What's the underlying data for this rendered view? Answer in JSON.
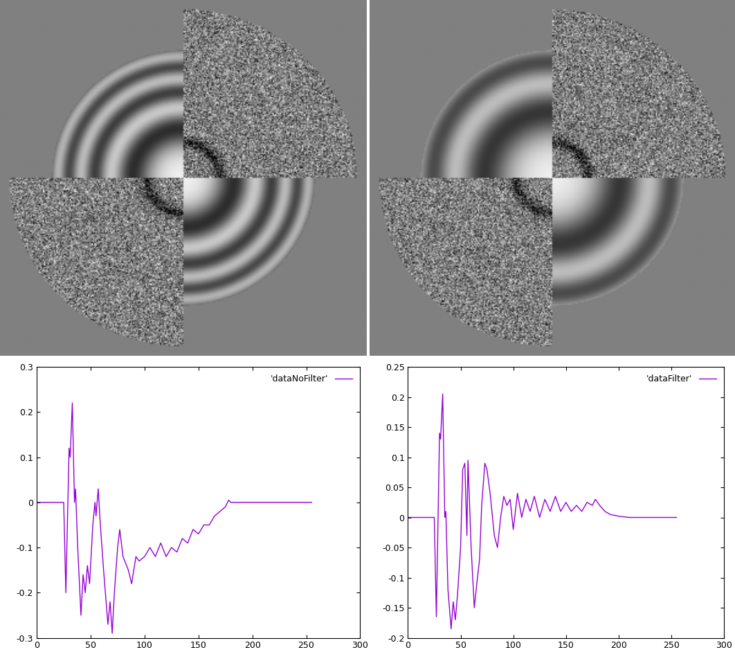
{
  "chart_data": [
    {
      "type": "line",
      "x": [
        0,
        25,
        27,
        30,
        31,
        33,
        35,
        36,
        38,
        41,
        43,
        45,
        47,
        49,
        52,
        54,
        55,
        57,
        59,
        62,
        66,
        68,
        70,
        72,
        75,
        77,
        80,
        85,
        88,
        92,
        95,
        100,
        105,
        110,
        115,
        120,
        125,
        130,
        135,
        140,
        145,
        150,
        155,
        160,
        165,
        170,
        175,
        178,
        180,
        255
      ],
      "series": [
        {
          "name": "'dataNoFilter'",
          "color": "#9400d3",
          "values": [
            0,
            0,
            -0.2,
            0.12,
            0.1,
            0.22,
            0,
            0.03,
            -0.1,
            -0.25,
            -0.16,
            -0.2,
            -0.14,
            -0.18,
            -0.05,
            0,
            -0.03,
            0.03,
            -0.05,
            -0.15,
            -0.27,
            -0.22,
            -0.29,
            -0.2,
            -0.1,
            -0.06,
            -0.12,
            -0.15,
            -0.18,
            -0.12,
            -0.13,
            -0.12,
            -0.1,
            -0.12,
            -0.09,
            -0.12,
            -0.1,
            -0.11,
            -0.08,
            -0.09,
            -0.06,
            -0.07,
            -0.05,
            -0.05,
            -0.03,
            -0.02,
            -0.01,
            0.005,
            0,
            0
          ]
        }
      ],
      "xlim": [
        0,
        300
      ],
      "xticks": [
        0,
        50,
        100,
        150,
        200,
        250,
        300
      ],
      "ylim": [
        -0.3,
        0.3
      ],
      "yticks": [
        -0.3,
        -0.2,
        -0.1,
        0,
        0.1,
        0.2,
        0.3
      ],
      "legend": "upper right"
    },
    {
      "type": "line",
      "x": [
        0,
        25,
        27,
        30,
        31,
        33,
        35,
        36,
        38,
        41,
        43,
        45,
        47,
        50,
        52,
        54,
        56,
        57,
        60,
        63,
        66,
        68,
        70,
        73,
        75,
        78,
        82,
        85,
        88,
        91,
        94,
        97,
        100,
        104,
        108,
        112,
        116,
        120,
        125,
        130,
        135,
        140,
        145,
        150,
        155,
        160,
        165,
        170,
        175,
        178,
        182,
        187,
        192,
        200,
        210,
        255
      ],
      "series": [
        {
          "name": "'dataFilter'",
          "color": "#9400d3",
          "values": [
            0,
            0,
            -0.165,
            0.14,
            0.13,
            0.205,
            0,
            0.01,
            -0.12,
            -0.185,
            -0.14,
            -0.17,
            -0.13,
            -0.05,
            0.08,
            0.09,
            -0.03,
            0.095,
            -0.05,
            -0.15,
            -0.1,
            -0.07,
            0.02,
            0.09,
            0.08,
            0.04,
            -0.03,
            -0.05,
            0,
            0.035,
            0.02,
            0.03,
            -0.02,
            0.04,
            0,
            0.03,
            0.01,
            0.035,
            0,
            0.03,
            0.01,
            0.035,
            0.01,
            0.025,
            0.01,
            0.02,
            0.01,
            0.025,
            0.02,
            0.03,
            0.02,
            0.01,
            0.005,
            0.002,
            0,
            0
          ]
        }
      ],
      "xlim": [
        0,
        300
      ],
      "xticks": [
        0,
        50,
        100,
        150,
        200,
        250,
        300
      ],
      "ylim": [
        -0.2,
        0.25
      ],
      "yticks": [
        -0.2,
        -0.15,
        -0.1,
        -0.05,
        0,
        0.05,
        0.1,
        0.15,
        0.2,
        0.25
      ],
      "legend": "upper right"
    }
  ]
}
